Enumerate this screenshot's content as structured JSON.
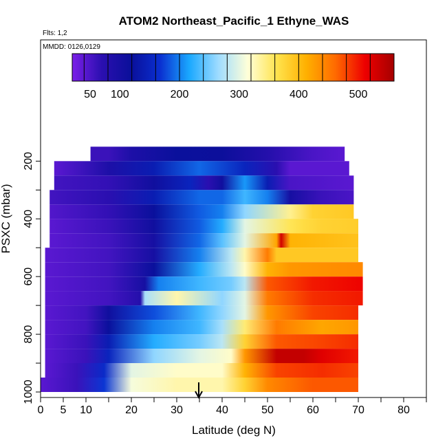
{
  "chart_data": {
    "type": "heatmap",
    "title": "ATOM2 Northeast_Pacific_1 Ethyne_WAS",
    "flights_note": "Flts: 1,2",
    "dates_note": "MMDD: 0126,0129",
    "xlabel": "Latitude (deg N)",
    "ylabel": "PSXC (mbar)",
    "xlim": [
      0,
      85
    ],
    "ylim": [
      1010,
      130
    ],
    "x_ticks": [
      0,
      5,
      10,
      20,
      30,
      40,
      50,
      60,
      70,
      80
    ],
    "x_minor_ticks": [
      15,
      25,
      35,
      45,
      55,
      65,
      75,
      85
    ],
    "y_ticks": [
      200,
      400,
      600,
      800,
      1000
    ],
    "colorbar": {
      "range": [
        20,
        560
      ],
      "ticks": [
        50,
        100,
        200,
        300,
        400,
        500
      ],
      "colors": [
        "#7b1fe8",
        "#2b0fb0",
        "#0a0f9a",
        "#0a2fd0",
        "#1aa8ff",
        "#9fdcff",
        "#ffffd8",
        "#ffe34d",
        "#ffb000",
        "#ff6a00",
        "#ee0000",
        "#a50000"
      ]
    },
    "arrow_marker_latitude": 35,
    "rows": [
      {
        "p": 175,
        "x0": 11,
        "x1": 67,
        "stops": [
          [
            11,
            60
          ],
          [
            15,
            60
          ],
          [
            20,
            90
          ],
          [
            30,
            120
          ],
          [
            40,
            115
          ],
          [
            50,
            80
          ],
          [
            60,
            50
          ],
          [
            67,
            40
          ]
        ]
      },
      {
        "p": 225,
        "x0": 3,
        "x1": 68,
        "stops": [
          [
            3,
            40
          ],
          [
            8,
            55
          ],
          [
            15,
            90
          ],
          [
            25,
            140
          ],
          [
            35,
            190
          ],
          [
            45,
            150
          ],
          [
            52,
            70
          ],
          [
            55,
            40
          ],
          [
            68,
            40
          ]
        ]
      },
      {
        "p": 275,
        "x0": 3,
        "x1": 69,
        "stops": [
          [
            3,
            55
          ],
          [
            15,
            65
          ],
          [
            25,
            110
          ],
          [
            33,
            150
          ],
          [
            37,
            70
          ],
          [
            40,
            110
          ],
          [
            45,
            210
          ],
          [
            50,
            140
          ],
          [
            55,
            50
          ],
          [
            69,
            40
          ]
        ]
      },
      {
        "p": 325,
        "x0": 2,
        "x1": 69,
        "stops": [
          [
            2,
            55
          ],
          [
            15,
            70
          ],
          [
            25,
            140
          ],
          [
            35,
            190
          ],
          [
            40,
            190
          ],
          [
            45,
            230
          ],
          [
            50,
            200
          ],
          [
            55,
            100
          ],
          [
            62,
            60
          ],
          [
            69,
            50
          ]
        ]
      },
      {
        "p": 375,
        "x0": 2,
        "x1": 69,
        "stops": [
          [
            2,
            45
          ],
          [
            15,
            65
          ],
          [
            25,
            120
          ],
          [
            35,
            185
          ],
          [
            40,
            200
          ],
          [
            45,
            260
          ],
          [
            55,
            340
          ],
          [
            60,
            380
          ],
          [
            69,
            390
          ]
        ]
      },
      {
        "p": 425,
        "x0": 2,
        "x1": 70,
        "stops": [
          [
            2,
            40
          ],
          [
            15,
            60
          ],
          [
            25,
            110
          ],
          [
            35,
            185
          ],
          [
            40,
            220
          ],
          [
            45,
            300
          ],
          [
            55,
            360
          ],
          [
            58,
            370
          ],
          [
            62,
            380
          ],
          [
            70,
            385
          ]
        ]
      },
      {
        "p": 475,
        "x0": 2,
        "x1": 70,
        "stops": [
          [
            2,
            40
          ],
          [
            15,
            55
          ],
          [
            25,
            100
          ],
          [
            35,
            190
          ],
          [
            40,
            240
          ],
          [
            45,
            300
          ],
          [
            52,
            420
          ],
          [
            53,
            530
          ],
          [
            55,
            410
          ],
          [
            70,
            395
          ]
        ]
      },
      {
        "p": 525,
        "x0": 1,
        "x1": 70,
        "stops": [
          [
            1,
            40
          ],
          [
            15,
            55
          ],
          [
            25,
            100
          ],
          [
            35,
            200
          ],
          [
            42,
            280
          ],
          [
            45,
            330
          ],
          [
            50,
            450
          ],
          [
            52,
            390
          ],
          [
            70,
            390
          ]
        ]
      },
      {
        "p": 575,
        "x0": 1,
        "x1": 71,
        "stops": [
          [
            1,
            40
          ],
          [
            15,
            55
          ],
          [
            25,
            120
          ],
          [
            35,
            220
          ],
          [
            42,
            280
          ],
          [
            45,
            320
          ],
          [
            50,
            410
          ],
          [
            55,
            430
          ],
          [
            70,
            440
          ]
        ]
      },
      {
        "p": 625,
        "x0": 1,
        "x1": 71,
        "stops": [
          [
            1,
            40
          ],
          [
            15,
            55
          ],
          [
            23,
            100
          ],
          [
            26,
            200
          ],
          [
            35,
            230
          ],
          [
            42,
            250
          ],
          [
            45,
            280
          ],
          [
            50,
            470
          ],
          [
            60,
            500
          ],
          [
            71,
            510
          ]
        ]
      },
      {
        "p": 675,
        "x0": 1,
        "x1": 71,
        "stops": [
          [
            1,
            40
          ],
          [
            15,
            55
          ],
          [
            22,
            80
          ],
          [
            23,
            270
          ],
          [
            30,
            330
          ],
          [
            40,
            260
          ],
          [
            45,
            300
          ],
          [
            50,
            450
          ],
          [
            60,
            490
          ],
          [
            71,
            500
          ]
        ]
      },
      {
        "p": 725,
        "x0": 1,
        "x1": 70,
        "stops": [
          [
            1,
            40
          ],
          [
            10,
            55
          ],
          [
            15,
            110
          ],
          [
            25,
            180
          ],
          [
            35,
            230
          ],
          [
            40,
            260
          ],
          [
            45,
            300
          ],
          [
            50,
            430
          ],
          [
            60,
            480
          ],
          [
            70,
            490
          ]
        ]
      },
      {
        "p": 775,
        "x0": 1,
        "x1": 70,
        "stops": [
          [
            1,
            40
          ],
          [
            10,
            55
          ],
          [
            15,
            120
          ],
          [
            25,
            200
          ],
          [
            35,
            230
          ],
          [
            40,
            270
          ],
          [
            45,
            350
          ],
          [
            52,
            450
          ],
          [
            62,
            420
          ],
          [
            70,
            430
          ]
        ]
      },
      {
        "p": 825,
        "x0": 1,
        "x1": 70,
        "stops": [
          [
            1,
            40
          ],
          [
            10,
            60
          ],
          [
            15,
            140
          ],
          [
            25,
            220
          ],
          [
            35,
            250
          ],
          [
            40,
            280
          ],
          [
            45,
            380
          ],
          [
            52,
            470
          ],
          [
            62,
            480
          ],
          [
            70,
            490
          ]
        ]
      },
      {
        "p": 875,
        "x0": 1,
        "x1": 70,
        "stops": [
          [
            1,
            40
          ],
          [
            10,
            60
          ],
          [
            15,
            150
          ],
          [
            25,
            260
          ],
          [
            35,
            300
          ],
          [
            42,
            320
          ],
          [
            45,
            430
          ],
          [
            52,
            540
          ],
          [
            58,
            540
          ],
          [
            62,
            520
          ],
          [
            70,
            500
          ]
        ]
      },
      {
        "p": 925,
        "x0": 1,
        "x1": 70,
        "stops": [
          [
            1,
            40
          ],
          [
            8,
            60
          ],
          [
            14,
            160
          ],
          [
            20,
            300
          ],
          [
            30,
            320
          ],
          [
            40,
            320
          ],
          [
            45,
            410
          ],
          [
            52,
            480
          ],
          [
            62,
            490
          ],
          [
            70,
            480
          ]
        ]
      },
      {
        "p": 975,
        "x0": 0,
        "x1": 70,
        "stops": [
          [
            0,
            40
          ],
          [
            8,
            60
          ],
          [
            14,
            170
          ],
          [
            20,
            310
          ],
          [
            30,
            330
          ],
          [
            40,
            330
          ],
          [
            45,
            380
          ],
          [
            50,
            440
          ],
          [
            60,
            470
          ],
          [
            70,
            470
          ]
        ]
      }
    ]
  }
}
